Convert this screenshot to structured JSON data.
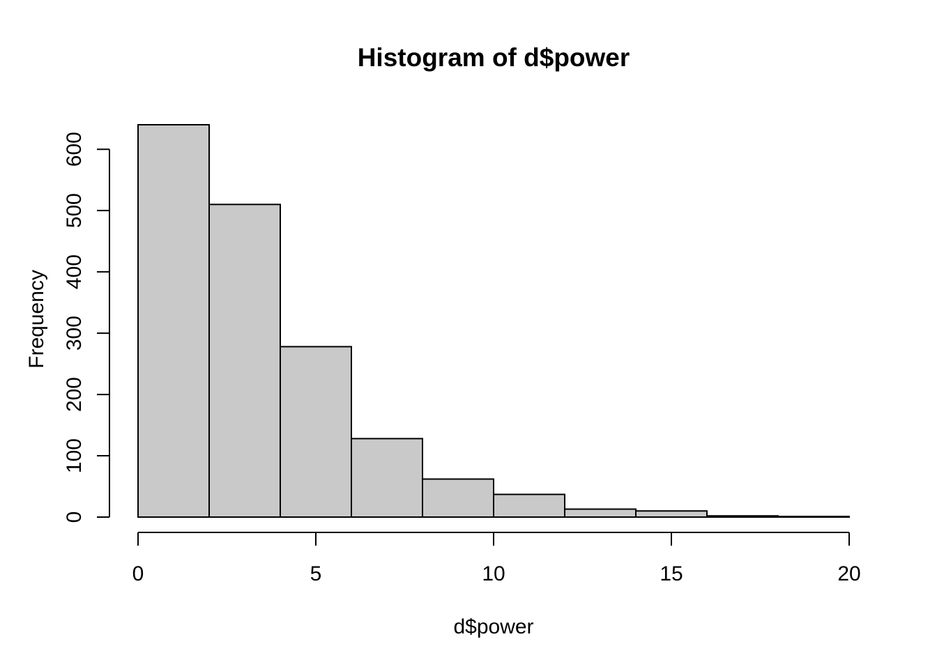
{
  "chart_data": {
    "type": "bar",
    "subtype": "histogram",
    "title": "Histogram of d$power",
    "xlabel": "d$power",
    "ylabel": "Frequency",
    "bin_edges": [
      0,
      2,
      4,
      6,
      8,
      10,
      12,
      14,
      16,
      18,
      20
    ],
    "counts": [
      640,
      510,
      278,
      128,
      62,
      37,
      13,
      10,
      2,
      1
    ],
    "x_ticks": [
      0,
      5,
      10,
      15,
      20
    ],
    "y_ticks": [
      0,
      100,
      200,
      300,
      400,
      500,
      600
    ],
    "xlim": [
      0,
      20
    ],
    "ylim": [
      0,
      640
    ],
    "grid": "off",
    "legend": "none",
    "colors": {
      "bar_fill": "#c9c9c9",
      "bar_stroke": "#000000",
      "axis_stroke": "#000000",
      "text": "#000000",
      "background": "#ffffff"
    }
  }
}
